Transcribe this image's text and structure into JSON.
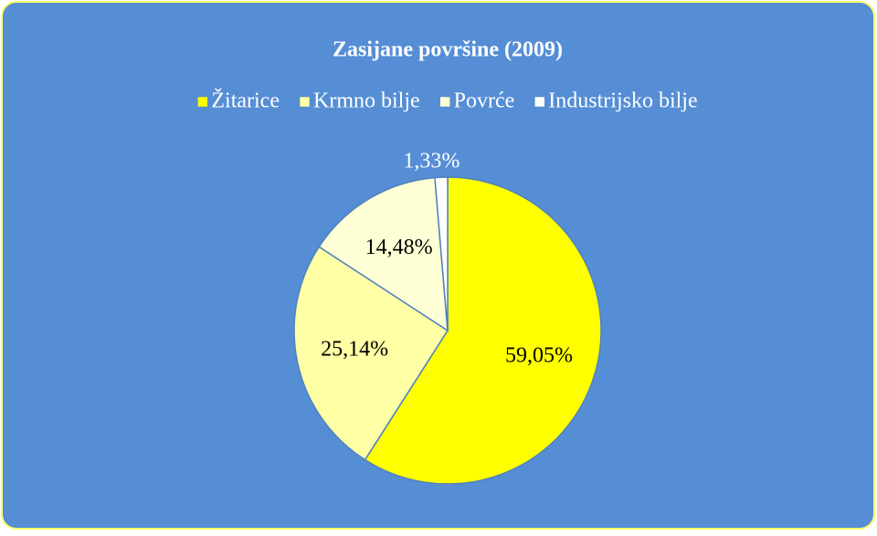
{
  "chart_data": {
    "type": "pie",
    "title": "Zasijane površine (2009)",
    "categories": [
      "Žitarice",
      "Krmno bilje",
      "Povrće",
      "Industrijsko bilje"
    ],
    "values": [
      59.05,
      25.14,
      14.48,
      1.33
    ],
    "value_labels": [
      "59,05%",
      "25,14%",
      "14,48%",
      "1,33%"
    ],
    "colors": [
      "#ffff00",
      "#ffffa6",
      "#ffffd6",
      "#ffffff"
    ],
    "legend": "top"
  }
}
